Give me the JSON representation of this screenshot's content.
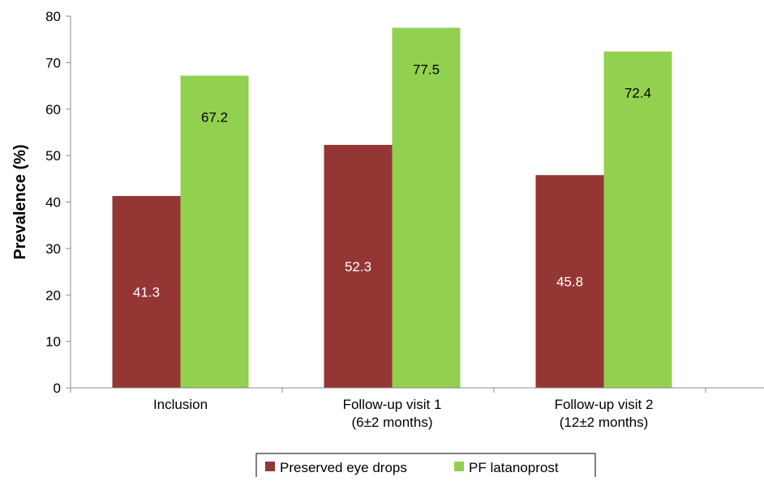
{
  "chart_data": {
    "type": "bar",
    "title": "",
    "xlabel": "",
    "ylabel": "Prevalence (%)",
    "ylim": [
      0,
      80
    ],
    "yticks": [
      0,
      10,
      20,
      30,
      40,
      50,
      60,
      70,
      80
    ],
    "grid": false,
    "legend_position": "bottom",
    "categories": [
      [
        "Inclusion"
      ],
      [
        "Follow-up visit 1",
        "(6±2 months)"
      ],
      [
        "Follow-up visit 2",
        "(12±2 months)"
      ]
    ],
    "series": [
      {
        "name": "Preserved eye drops",
        "color": "#943634",
        "label_color": "#ffffff",
        "values": [
          41.3,
          52.3,
          45.8
        ],
        "labels": [
          "41.3",
          "52.3",
          "45.8"
        ]
      },
      {
        "name": "PF latanoprost",
        "color": "#92d050",
        "label_color": "#000000",
        "values": [
          67.2,
          77.5,
          72.4
        ],
        "labels": [
          "67.2",
          "77.5",
          "72.4"
        ]
      }
    ]
  }
}
